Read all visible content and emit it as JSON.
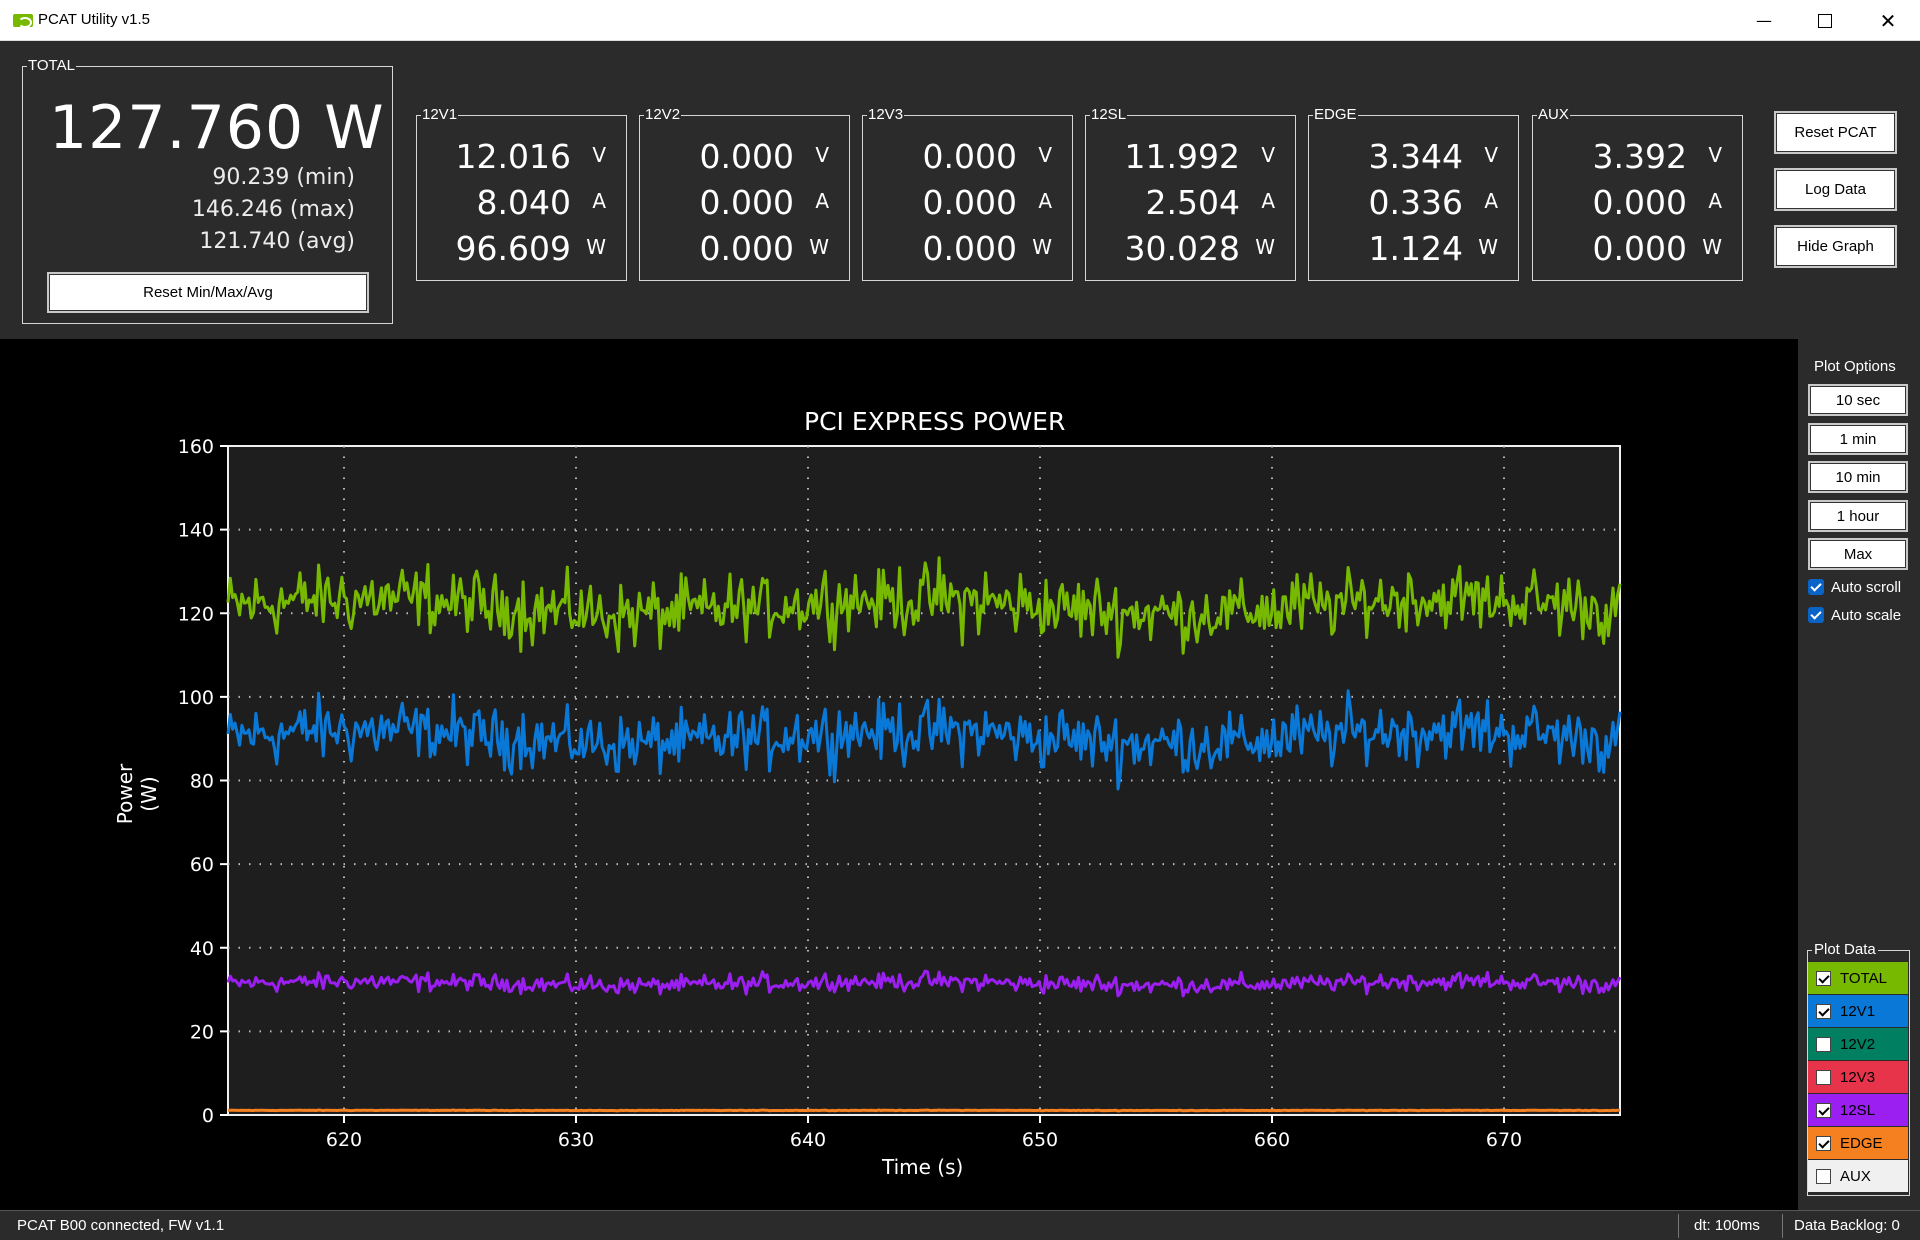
{
  "window": {
    "title": "PCAT Utility v1.5",
    "minimize": "—",
    "close": "✕"
  },
  "total": {
    "label": "TOTAL",
    "value": "127.760 W",
    "min": "90.239 (min)",
    "max": "146.246 (max)",
    "avg": "121.740 (avg)",
    "reset_label": "Reset Min/Max/Avg"
  },
  "rails": [
    {
      "name": "12V1",
      "v": "12.016",
      "a": "8.040",
      "w": "96.609"
    },
    {
      "name": "12V2",
      "v": "0.000",
      "a": "0.000",
      "w": "0.000"
    },
    {
      "name": "12V3",
      "v": "0.000",
      "a": "0.000",
      "w": "0.000"
    },
    {
      "name": "12SL",
      "v": "11.992",
      "a": "2.504",
      "w": "30.028"
    },
    {
      "name": "EDGE",
      "v": "3.344",
      "a": "0.336",
      "w": "1.124"
    },
    {
      "name": "AUX",
      "v": "3.392",
      "a": "0.000",
      "w": "0.000"
    }
  ],
  "units": {
    "v": "V",
    "a": "A",
    "w": "W"
  },
  "side_buttons": {
    "reset_pcat": "Reset PCAT",
    "log_data": "Log Data",
    "hide_graph": "Hide Graph"
  },
  "plot_options": {
    "title": "Plot Options",
    "buttons": [
      "10 sec",
      "1 min",
      "10 min",
      "1 hour",
      "Max"
    ],
    "auto_scroll": "Auto scroll",
    "auto_scale": "Auto scale"
  },
  "plot_data": {
    "title": "Plot Data",
    "items": [
      {
        "label": "TOTAL",
        "checked": true,
        "color": "#76b900",
        "text_color": "#000000"
      },
      {
        "label": "12V1",
        "checked": true,
        "color": "#0a78d7",
        "text_color": "#000000"
      },
      {
        "label": "12V2",
        "checked": false,
        "color": "#008060",
        "text_color": "#000000"
      },
      {
        "label": "12V3",
        "checked": false,
        "color": "#e8344b",
        "text_color": "#000000"
      },
      {
        "label": "12SL",
        "checked": true,
        "color": "#9b1ff0",
        "text_color": "#000000"
      },
      {
        "label": "EDGE",
        "checked": true,
        "color": "#f58020",
        "text_color": "#000000"
      },
      {
        "label": "AUX",
        "checked": false,
        "color": "#f0f0f0",
        "text_color": "#000000"
      }
    ]
  },
  "status": {
    "connection": "PCAT B00 connected, FW v1.1",
    "dt": "dt: 100ms",
    "backlog": "Data Backlog: 0"
  },
  "chart_data": {
    "type": "line",
    "title": "PCI EXPRESS POWER",
    "xlabel": "Time (s)",
    "ylabel": "Power (W)",
    "xlim": [
      615,
      675
    ],
    "ylim": [
      0,
      160
    ],
    "xticks": [
      620,
      630,
      640,
      650,
      660,
      670
    ],
    "yticks": [
      0,
      20,
      40,
      60,
      80,
      100,
      120,
      140,
      160
    ],
    "grid": true,
    "series": [
      {
        "name": "TOTAL",
        "color": "#76b900",
        "mean": 121.7,
        "min": 98,
        "max": 143,
        "noise": 12
      },
      {
        "name": "12V1",
        "color": "#0a78d7",
        "mean": 90.5,
        "min": 67,
        "max": 106,
        "noise": 11
      },
      {
        "name": "12SL",
        "color": "#9b1ff0",
        "mean": 31.5,
        "min": 25,
        "max": 36,
        "noise": 3.2
      },
      {
        "name": "EDGE",
        "color": "#f58020",
        "mean": 1.1,
        "min": 0.9,
        "max": 1.3,
        "noise": 0.1
      }
    ]
  }
}
